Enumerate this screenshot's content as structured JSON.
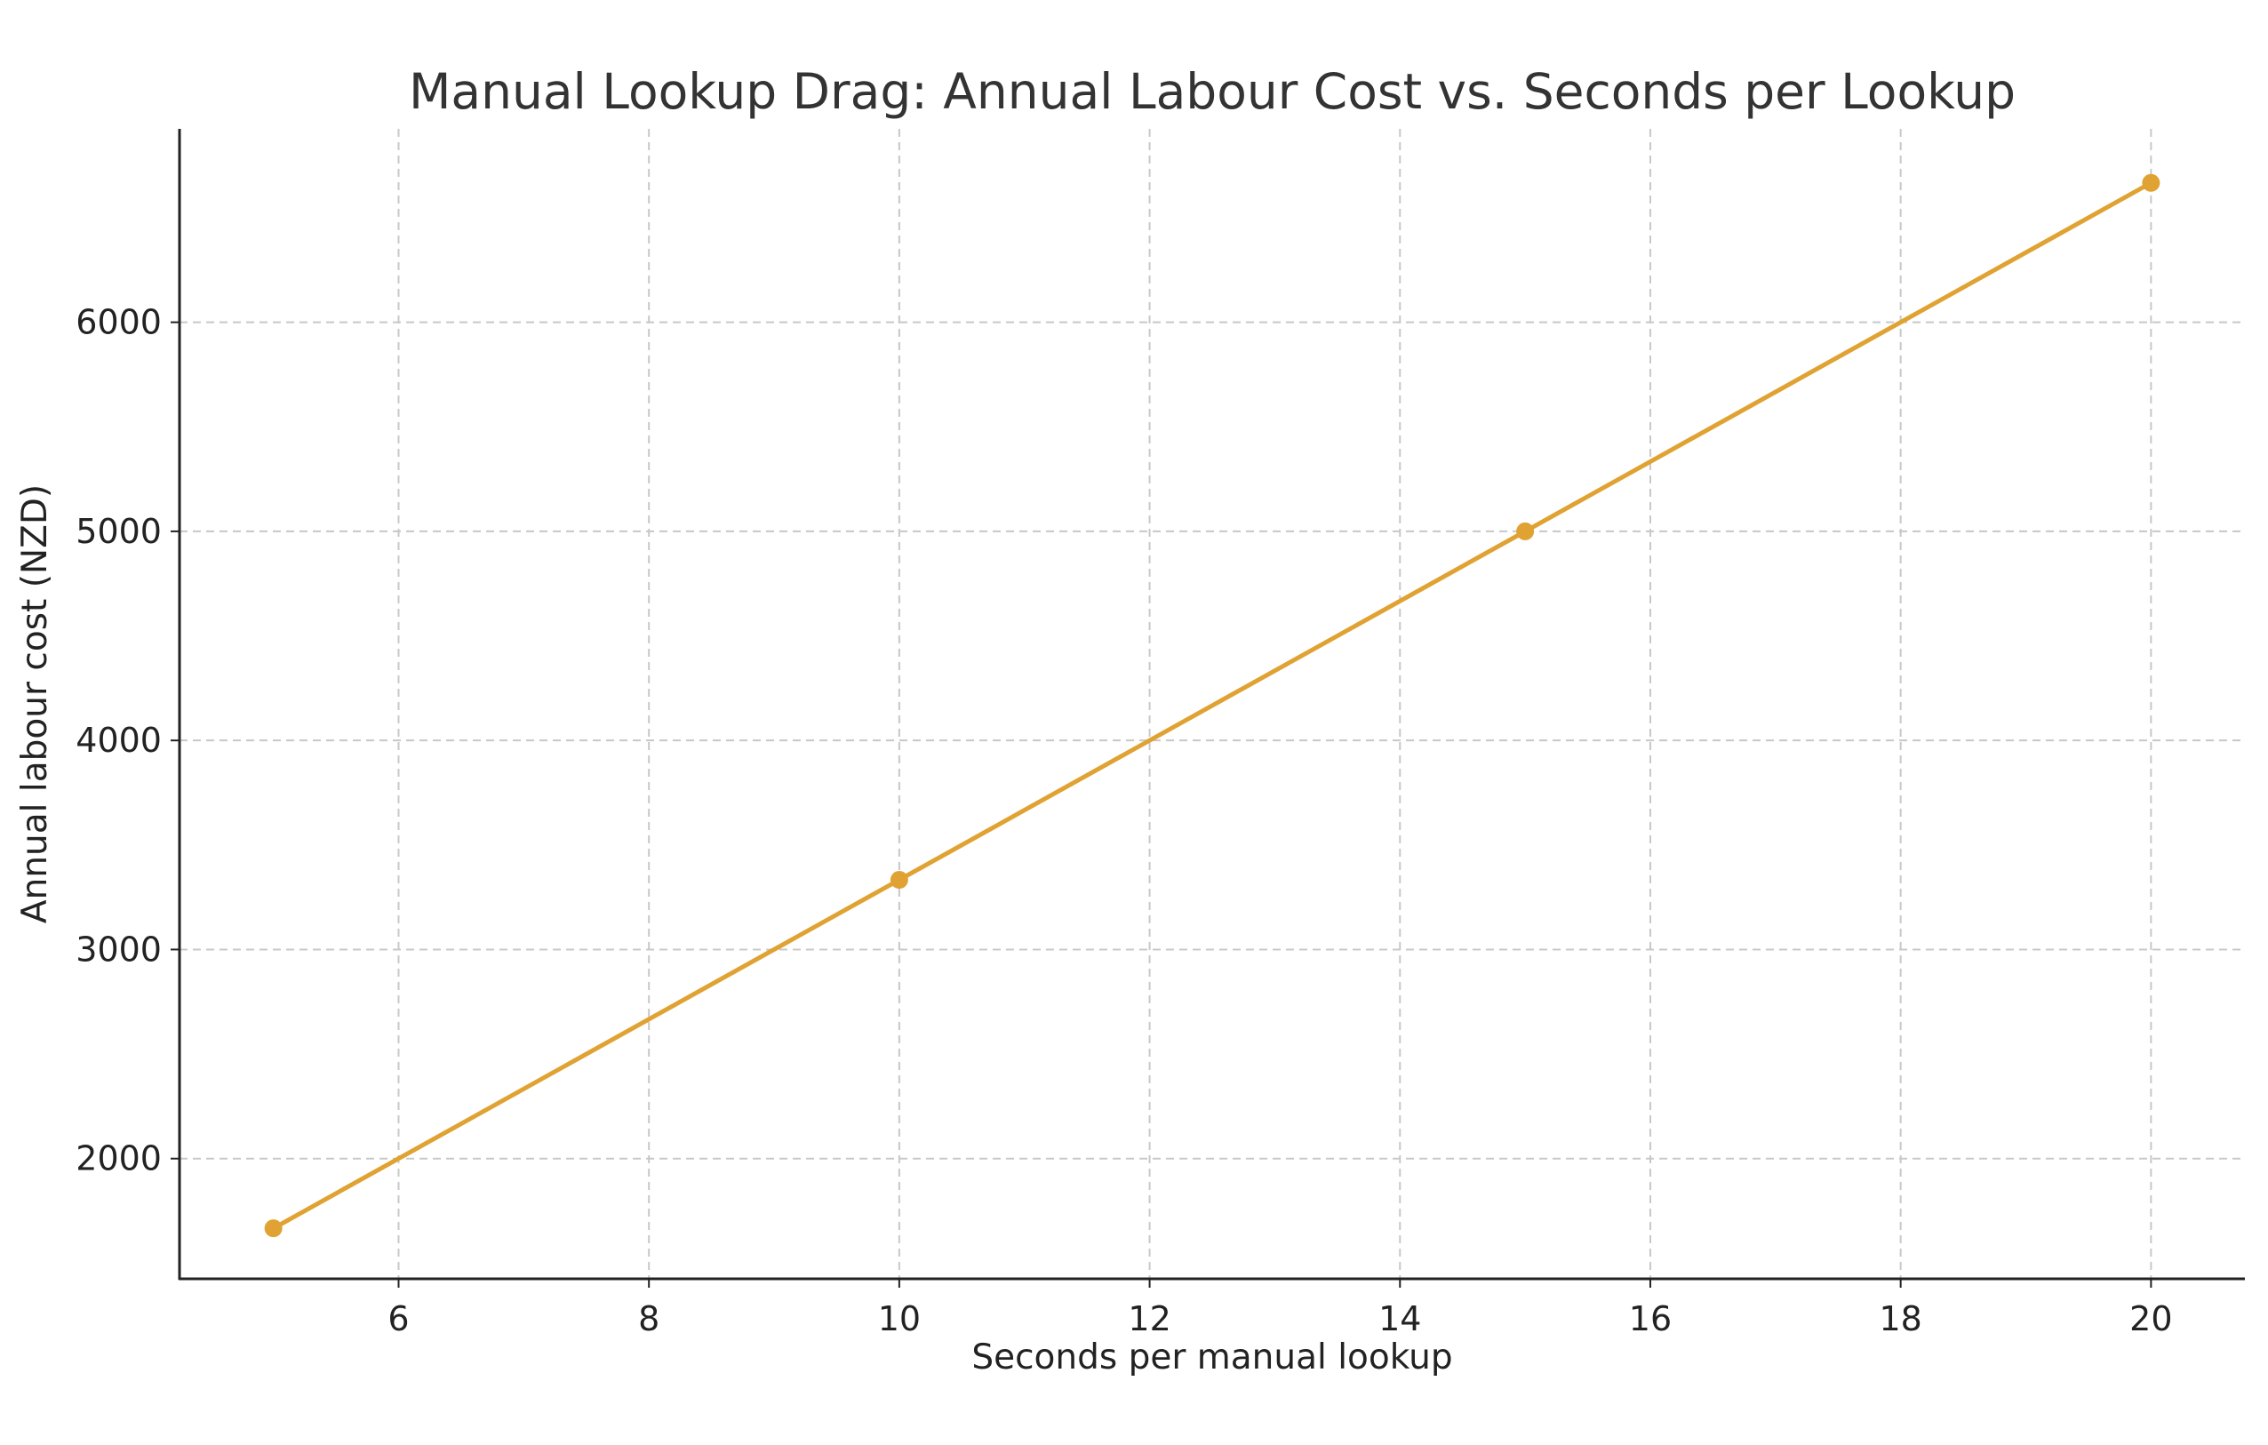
{
  "chart_data": {
    "type": "line",
    "title": "Manual Lookup Drag: Annual Labour Cost vs. Seconds per Lookup",
    "xlabel": "Seconds per manual lookup",
    "ylabel": "Annual labour cost (NZD)",
    "xlim": [
      4.25,
      20.75
    ],
    "ylim": [
      1425,
      6925
    ],
    "xticks": [
      6,
      8,
      10,
      12,
      14,
      16,
      18,
      20
    ],
    "yticks": [
      2000,
      3000,
      4000,
      5000,
      6000
    ],
    "grid": true,
    "series": [
      {
        "name": "Annual labour cost",
        "color": "#E0A232",
        "x": [
          5,
          10,
          15,
          20
        ],
        "y": [
          1666.7,
          3333.3,
          5000,
          6666.7
        ]
      }
    ]
  }
}
